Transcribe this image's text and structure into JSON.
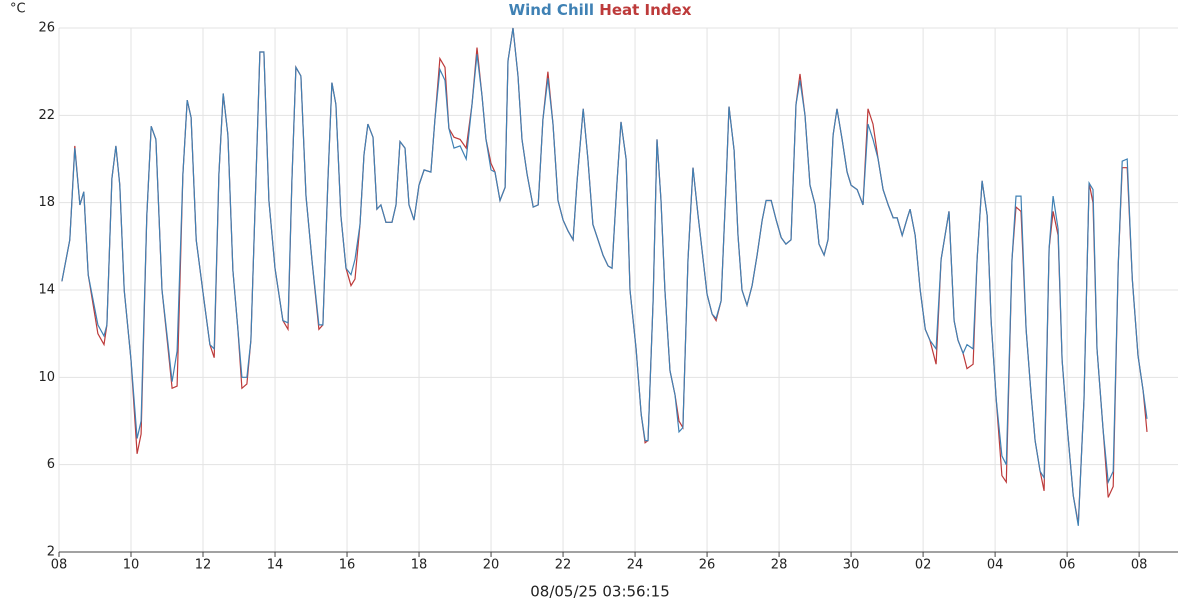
{
  "chart_data": {
    "type": "line",
    "title_parts": [
      "Wind Chill",
      "Heat Index"
    ],
    "y_label": "°C",
    "x_label": "08/05/25 03:56:15",
    "x": [
      0.08,
      0.3,
      0.44,
      0.58,
      0.69,
      0.81,
      1.08,
      1.25,
      1.33,
      1.47,
      1.58,
      1.69,
      1.81,
      2.0,
      2.17,
      2.28,
      2.44,
      2.56,
      2.69,
      2.86,
      3.03,
      3.14,
      3.28,
      3.44,
      3.56,
      3.67,
      3.81,
      4.03,
      4.19,
      4.31,
      4.44,
      4.56,
      4.69,
      4.83,
      4.97,
      5.08,
      5.22,
      5.33,
      5.47,
      5.58,
      5.69,
      5.83,
      6.0,
      6.22,
      6.36,
      6.47,
      6.58,
      6.72,
      6.86,
      7.03,
      7.22,
      7.33,
      7.47,
      7.58,
      7.69,
      7.83,
      7.97,
      8.11,
      8.22,
      8.36,
      8.47,
      8.58,
      8.72,
      8.83,
      8.94,
      9.08,
      9.25,
      9.36,
      9.47,
      9.61,
      9.72,
      9.86,
      10.0,
      10.14,
      10.33,
      10.44,
      10.58,
      10.72,
      10.83,
      10.97,
      11.14,
      11.31,
      11.47,
      11.61,
      11.75,
      11.86,
      12.0,
      12.11,
      12.25,
      12.39,
      12.47,
      12.61,
      12.75,
      12.86,
      13.0,
      13.17,
      13.31,
      13.44,
      13.58,
      13.72,
      13.86,
      14.0,
      14.14,
      14.28,
      14.39,
      14.56,
      14.69,
      14.83,
      14.97,
      15.11,
      15.25,
      15.36,
      15.5,
      15.61,
      15.75,
      15.86,
      16.03,
      16.17,
      16.28,
      16.36,
      16.5,
      16.61,
      16.72,
      16.83,
      16.97,
      17.11,
      17.22,
      17.33,
      17.47,
      17.61,
      17.75,
      17.89,
      18.0,
      18.14,
      18.25,
      18.39,
      18.53,
      18.61,
      18.75,
      18.86,
      18.97,
      19.11,
      19.25,
      19.39,
      19.53,
      19.64,
      19.78,
      19.92,
      20.06,
      20.19,
      20.33,
      20.47,
      20.58,
      20.72,
      20.86,
      21.0,
      21.11,
      21.25,
      21.36,
      21.5,
      21.61,
      21.75,
      21.89,
      22.0,
      22.17,
      22.33,
      22.47,
      22.61,
      22.75,
      22.89,
      23.03,
      23.17,
      23.28,
      23.42,
      23.56,
      23.64,
      23.78,
      23.92,
      24.06,
      24.19,
      24.36,
      24.5,
      24.72,
      24.86,
      24.97,
      25.11,
      25.22,
      25.39,
      25.5,
      25.64,
      25.78,
      25.89,
      26.03,
      26.19,
      26.31,
      26.47,
      26.58,
      26.72,
      26.86,
      27.0,
      27.11,
      27.25,
      27.36,
      27.5,
      27.61,
      27.75,
      27.86,
      28.0,
      28.17,
      28.31,
      28.47,
      28.61,
      28.72,
      28.83,
      29.0,
      29.14,
      29.28,
      29.42,
      29.53,
      29.67,
      29.81,
      29.97,
      30.11,
      30.22
    ],
    "series": [
      {
        "name": "Wind Chill",
        "color": "#3f81b4",
        "values": [
          14.4,
          16.3,
          20.5,
          17.9,
          18.5,
          14.7,
          12.4,
          11.9,
          12.4,
          19.1,
          20.6,
          18.8,
          14.0,
          10.8,
          7.2,
          8.0,
          17.4,
          21.5,
          20.9,
          14.0,
          11.5,
          9.8,
          11.2,
          19.3,
          22.7,
          21.9,
          16.3,
          13.5,
          11.5,
          11.3,
          19.3,
          23.0,
          21.1,
          14.9,
          12.2,
          10.0,
          10.0,
          11.7,
          19.0,
          24.9,
          24.9,
          18.1,
          15.0,
          12.6,
          12.5,
          19.0,
          24.2,
          23.8,
          18.3,
          15.3,
          12.4,
          12.4,
          19.0,
          23.5,
          22.5,
          17.4,
          15.0,
          14.7,
          15.4,
          17.0,
          20.2,
          21.6,
          21.0,
          17.7,
          17.9,
          17.1,
          17.1,
          17.9,
          20.8,
          20.5,
          17.9,
          17.2,
          18.8,
          19.5,
          19.4,
          21.8,
          24.1,
          23.6,
          21.4,
          20.5,
          20.6,
          20.0,
          22.5,
          24.8,
          22.9,
          20.9,
          19.5,
          19.4,
          18.1,
          18.7,
          24.5,
          26.0,
          23.8,
          20.9,
          19.3,
          17.8,
          17.9,
          21.8,
          23.7,
          21.6,
          18.1,
          17.2,
          16.7,
          16.3,
          19.0,
          22.3,
          20.0,
          17.0,
          16.3,
          15.6,
          15.1,
          15.0,
          19.0,
          21.7,
          20.0,
          14.0,
          11.3,
          8.3,
          7.1,
          7.1,
          13.5,
          20.9,
          18.1,
          14.0,
          10.3,
          9.2,
          7.5,
          7.7,
          15.4,
          19.6,
          17.4,
          15.4,
          13.8,
          12.9,
          12.7,
          13.5,
          19.0,
          22.4,
          20.4,
          16.5,
          14.0,
          13.3,
          14.2,
          15.6,
          17.2,
          18.1,
          18.1,
          17.2,
          16.4,
          16.1,
          16.3,
          22.5,
          23.6,
          22.0,
          18.8,
          17.9,
          16.1,
          15.6,
          16.3,
          21.1,
          22.3,
          20.9,
          19.4,
          18.8,
          18.6,
          17.9,
          21.6,
          20.9,
          20.0,
          18.6,
          17.9,
          17.3,
          17.3,
          16.5,
          17.3,
          17.7,
          16.5,
          14.0,
          12.2,
          11.7,
          11.3,
          15.4,
          17.6,
          12.6,
          11.7,
          11.1,
          11.5,
          11.3,
          15.4,
          19.0,
          17.4,
          12.6,
          9.0,
          6.4,
          6.0,
          15.4,
          18.3,
          18.3,
          12.2,
          9.2,
          7.1,
          5.7,
          5.4,
          15.9,
          18.3,
          16.8,
          10.8,
          7.8,
          4.6,
          3.2,
          9.0,
          18.9,
          18.6,
          11.3,
          7.6,
          5.2,
          5.7,
          15.1,
          19.9,
          20.0,
          14.5,
          11.0,
          9.4,
          8.1
        ]
      },
      {
        "name": "Heat Index",
        "color": "#bd3a3a",
        "values": [
          14.4,
          16.3,
          20.6,
          17.9,
          18.5,
          14.7,
          12.0,
          11.5,
          12.4,
          19.1,
          20.6,
          18.8,
          14.0,
          10.8,
          6.5,
          7.4,
          17.4,
          21.5,
          20.9,
          14.0,
          11.3,
          9.5,
          9.6,
          19.3,
          22.7,
          21.9,
          16.3,
          13.5,
          11.5,
          10.9,
          19.3,
          23.0,
          21.1,
          14.9,
          12.2,
          9.5,
          9.7,
          11.7,
          19.0,
          24.9,
          24.9,
          18.1,
          15.0,
          12.6,
          12.2,
          19.0,
          24.2,
          23.8,
          18.3,
          15.3,
          12.2,
          12.4,
          19.0,
          23.5,
          22.5,
          17.4,
          15.0,
          14.2,
          14.5,
          17.0,
          20.2,
          21.6,
          21.0,
          17.7,
          17.9,
          17.1,
          17.1,
          17.9,
          20.8,
          20.5,
          17.9,
          17.2,
          18.8,
          19.5,
          19.4,
          21.8,
          24.6,
          24.2,
          21.4,
          21.0,
          20.9,
          20.5,
          22.5,
          25.1,
          22.9,
          20.9,
          19.8,
          19.4,
          18.1,
          18.7,
          24.5,
          26.0,
          23.8,
          20.9,
          19.3,
          17.8,
          17.9,
          21.8,
          24.0,
          21.6,
          18.1,
          17.2,
          16.7,
          16.3,
          19.0,
          22.3,
          20.0,
          17.0,
          16.3,
          15.6,
          15.1,
          15.0,
          19.0,
          21.7,
          20.0,
          14.0,
          11.3,
          8.3,
          7.0,
          7.1,
          13.5,
          20.9,
          18.1,
          14.0,
          10.3,
          9.2,
          8.0,
          7.7,
          15.4,
          19.6,
          17.4,
          15.4,
          13.8,
          12.9,
          12.6,
          13.5,
          19.0,
          22.4,
          20.4,
          16.5,
          14.0,
          13.3,
          14.2,
          15.6,
          17.2,
          18.1,
          18.1,
          17.2,
          16.4,
          16.1,
          16.3,
          22.5,
          23.9,
          22.0,
          18.8,
          17.9,
          16.1,
          15.6,
          16.3,
          21.1,
          22.3,
          20.9,
          19.4,
          18.8,
          18.6,
          17.9,
          22.3,
          21.6,
          20.0,
          18.6,
          17.9,
          17.3,
          17.3,
          16.5,
          17.3,
          17.7,
          16.5,
          14.0,
          12.2,
          11.7,
          10.6,
          15.4,
          17.6,
          12.6,
          11.7,
          11.1,
          10.4,
          10.6,
          15.4,
          19.0,
          17.4,
          12.6,
          9.0,
          5.5,
          5.2,
          15.4,
          17.8,
          17.6,
          12.2,
          9.2,
          7.1,
          5.7,
          4.8,
          15.9,
          17.6,
          16.5,
          10.8,
          7.8,
          4.6,
          3.3,
          9.0,
          18.9,
          18.0,
          11.3,
          7.6,
          4.5,
          5.0,
          15.1,
          19.6,
          19.6,
          14.5,
          11.0,
          9.4,
          7.5
        ]
      }
    ],
    "xlim": [
      0,
      31.08
    ],
    "xticks": [
      {
        "value": 0,
        "label": "08"
      },
      {
        "value": 2,
        "label": "10"
      },
      {
        "value": 4,
        "label": "12"
      },
      {
        "value": 6,
        "label": "14"
      },
      {
        "value": 8,
        "label": "16"
      },
      {
        "value": 10,
        "label": "18"
      },
      {
        "value": 12,
        "label": "20"
      },
      {
        "value": 14,
        "label": "22"
      },
      {
        "value": 16,
        "label": "24"
      },
      {
        "value": 18,
        "label": "26"
      },
      {
        "value": 20,
        "label": "28"
      },
      {
        "value": 22,
        "label": "30"
      },
      {
        "value": 24,
        "label": "02"
      },
      {
        "value": 26,
        "label": "04"
      },
      {
        "value": 28,
        "label": "06"
      },
      {
        "value": 30,
        "label": "08"
      }
    ],
    "ylim": [
      2,
      26
    ],
    "yticks": [
      2,
      6,
      10,
      14,
      18,
      22,
      26
    ],
    "grid": true
  }
}
